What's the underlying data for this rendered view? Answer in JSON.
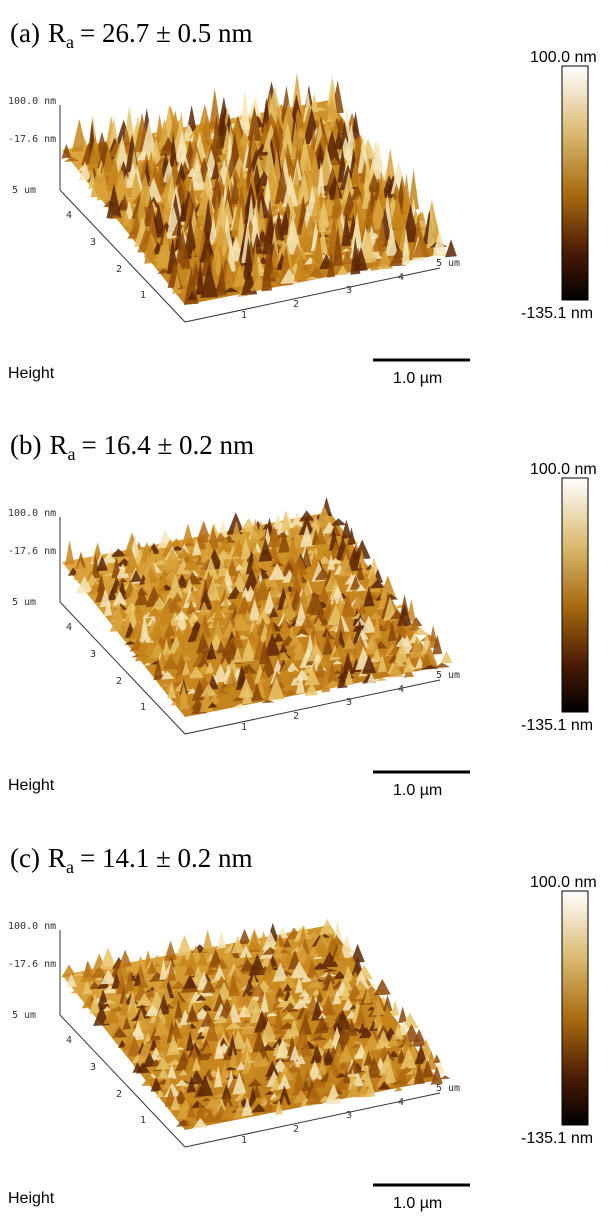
{
  "panels": [
    {
      "label": "(a)",
      "ra_symbol": "R",
      "ra_subscript": "a",
      "ra_value": "= 26.7 ± 0.5 nm",
      "z_max": "100.0 nm",
      "z_mid": "-17.6 nm",
      "y_axis_end": "5 um",
      "y_ticks": [
        "1",
        "2",
        "3",
        "4"
      ],
      "x_ticks": [
        "1",
        "2",
        "3",
        "4"
      ],
      "x_axis_end": "5 um",
      "colorbar_max": "100.0 nm",
      "colorbar_min": "-135.1 nm",
      "channel": "Height",
      "scale_bar": "1.0 µm"
    },
    {
      "label": "(b)",
      "ra_symbol": "R",
      "ra_subscript": "a",
      "ra_value": "= 16.4 ± 0.2 nm",
      "z_max": "100.0 nm",
      "z_mid": "-17.6 nm",
      "y_axis_end": "5 um",
      "y_ticks": [
        "1",
        "2",
        "3",
        "4"
      ],
      "x_ticks": [
        "1",
        "2",
        "3",
        "4"
      ],
      "x_axis_end": "5 um",
      "colorbar_max": "100.0 nm",
      "colorbar_min": "-135.1 nm",
      "channel": "Height",
      "scale_bar": "1.0 µm"
    },
    {
      "label": "(c)",
      "ra_symbol": "R",
      "ra_subscript": "a",
      "ra_value": "= 14.1 ± 0.2 nm",
      "z_max": "100.0 nm",
      "z_mid": "-17.6 nm",
      "y_axis_end": "5 um",
      "y_ticks": [
        "1",
        "2",
        "3",
        "4"
      ],
      "x_ticks": [
        "1",
        "2",
        "3",
        "4"
      ],
      "x_axis_end": "5 um",
      "colorbar_max": "100.0 nm",
      "colorbar_min": "-135.1 nm",
      "channel": "Height",
      "scale_bar": "1.0 µm"
    }
  ]
}
